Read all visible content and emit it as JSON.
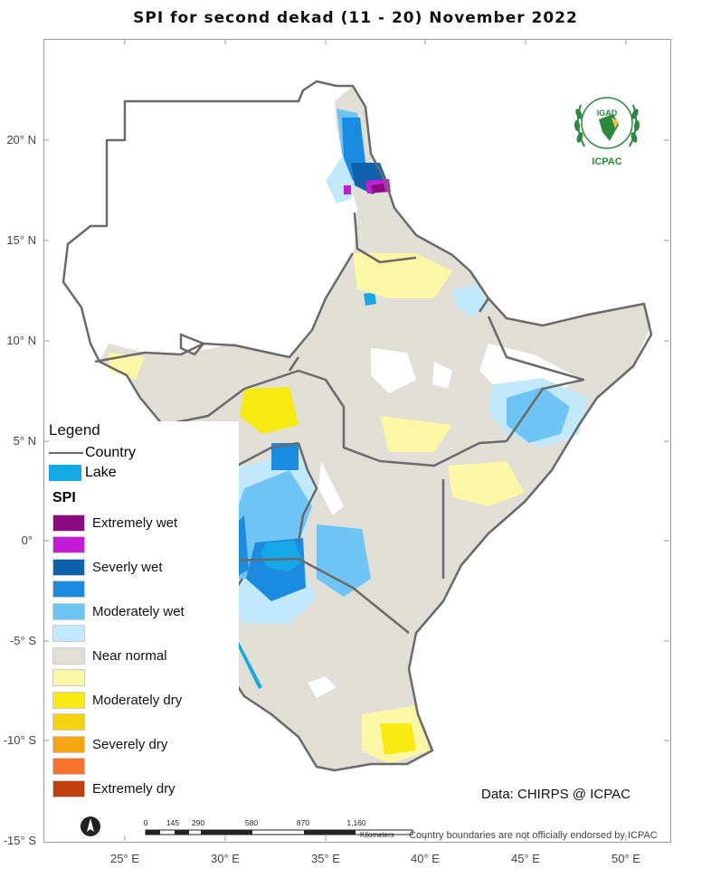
{
  "title": "SPI   for   second  dekad  (11 - 20)  November 2022",
  "y_ticks": [
    "20° N",
    "15° N",
    "10° N",
    "5° N",
    "0°",
    "-5° S",
    "-10° S",
    "-15° S"
  ],
  "x_ticks": [
    "25° E",
    "30° E",
    "35° E",
    "40° E",
    "45° E",
    "50° E"
  ],
  "legend": {
    "title": "Legend",
    "country_label": "Country",
    "lake_label": "Lake",
    "spi_title": "SPI",
    "classes": [
      {
        "label": "Extremely wet",
        "color": "#8b0a7f"
      },
      {
        "label": "",
        "color": "#c41cd6"
      },
      {
        "label": "Severly wet",
        "color": "#0e62ac"
      },
      {
        "label": "",
        "color": "#1a8be0"
      },
      {
        "label": "Moderately wet",
        "color": "#6ec5f5"
      },
      {
        "label": "",
        "color": "#c2e9fb"
      },
      {
        "label": "Near normal",
        "color": "#e1ded6"
      },
      {
        "label": "",
        "color": "#fbf7a4"
      },
      {
        "label": "Moderately dry",
        "color": "#f7ea12"
      },
      {
        "label": "",
        "color": "#f5d20e"
      },
      {
        "label": "Severely dry",
        "color": "#f7a513"
      },
      {
        "label": "",
        "color": "#f7722a"
      },
      {
        "label": "Extremely dry",
        "color": "#c33f0e"
      }
    ]
  },
  "credit": "Data: CHIRPS @ ICPAC",
  "logo": {
    "top_text": "IGAD",
    "bottom_text": "ICPAC"
  },
  "scale": {
    "labels": [
      "0",
      "145",
      "290",
      "580",
      "870",
      "1,160"
    ],
    "unit": "Kilometers"
  },
  "disclaimer": "Country boundaries are not officially endorsed by ICPAC",
  "colors": {
    "near_normal": "#e1ded6",
    "border": "#6a6a6a",
    "lake": "#14a8e6"
  }
}
